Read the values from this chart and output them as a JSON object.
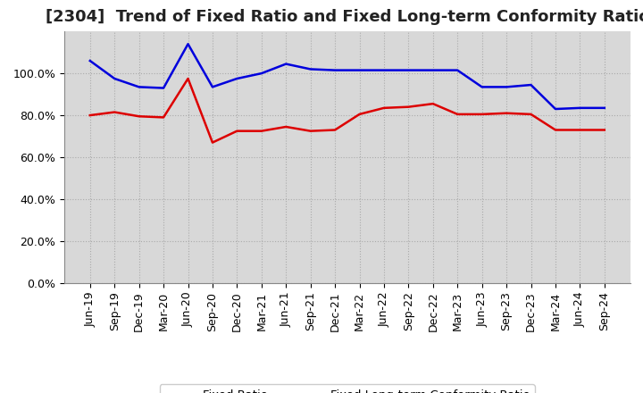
{
  "title": "[2304]  Trend of Fixed Ratio and Fixed Long-term Conformity Ratio",
  "x_labels": [
    "Jun-19",
    "Sep-19",
    "Dec-19",
    "Mar-20",
    "Jun-20",
    "Sep-20",
    "Dec-20",
    "Mar-21",
    "Jun-21",
    "Sep-21",
    "Dec-21",
    "Mar-22",
    "Jun-22",
    "Sep-22",
    "Dec-22",
    "Mar-23",
    "Jun-23",
    "Sep-23",
    "Dec-23",
    "Mar-24",
    "Jun-24",
    "Sep-24"
  ],
  "fixed_ratio": [
    106.0,
    97.5,
    93.5,
    93.0,
    114.0,
    93.5,
    97.5,
    100.0,
    104.5,
    102.0,
    101.5,
    101.5,
    101.5,
    101.5,
    101.5,
    101.5,
    93.5,
    93.5,
    94.5,
    83.0,
    83.5,
    83.5
  ],
  "fixed_lt_ratio": [
    80.0,
    81.5,
    79.5,
    79.0,
    97.5,
    67.0,
    72.5,
    72.5,
    74.5,
    72.5,
    73.0,
    80.5,
    83.5,
    84.0,
    85.5,
    80.5,
    80.5,
    81.0,
    80.5,
    73.0,
    73.0,
    73.0
  ],
  "fixed_ratio_color": "#0000dd",
  "fixed_lt_ratio_color": "#dd0000",
  "grid_color": "#aaaaaa",
  "figure_bg": "#ffffff",
  "plot_bg": "#d8d8d8",
  "ylim": [
    0,
    120
  ],
  "yticks": [
    0,
    20,
    40,
    60,
    80,
    100
  ],
  "legend_fixed": "Fixed Ratio",
  "legend_lt": "Fixed Long-term Conformity Ratio",
  "title_fontsize": 13,
  "tick_fontsize": 9
}
